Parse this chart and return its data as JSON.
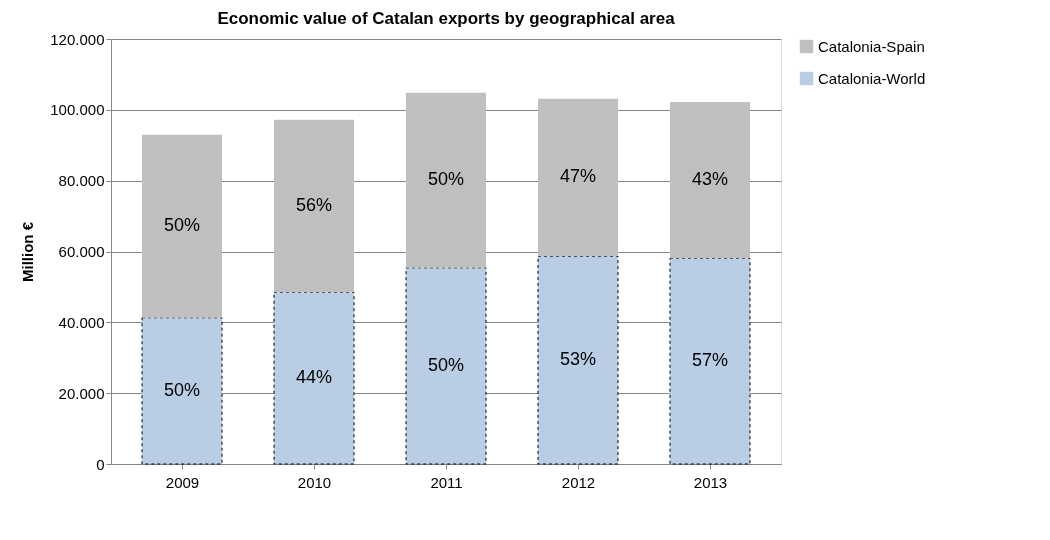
{
  "chart_data": {
    "type": "bar",
    "title": "Economic value of Catalan exports by geographical area",
    "ylabel": "Million €",
    "categories": [
      "2009",
      "2010",
      "2011",
      "2012",
      "2013"
    ],
    "stacked": true,
    "series": [
      {
        "name": "Catalonia-World",
        "color": "#b9cde5",
        "line_style": "dashed",
        "values": [
          41300,
          48500,
          55400,
          58700,
          58100
        ]
      },
      {
        "name": "Catalonia-Spain",
        "color": "#bfbfbf",
        "values": [
          51700,
          48700,
          49400,
          44400,
          44100
        ]
      }
    ],
    "annotations": [
      "50%",
      "44%",
      "50%",
      "53%",
      "57%",
      "50%",
      "56%",
      "50%",
      "47%",
      "43%"
    ],
    "ylim": [
      0,
      120000
    ],
    "yticks": [
      0,
      {
        "value": 20000,
        "label": "20.000"
      },
      {
        "value": 40000,
        "label": "40.000"
      },
      {
        "value": 60000,
        "label": "60.000"
      },
      {
        "value": 80000,
        "label": "80.000"
      },
      {
        "value": 100000,
        "label": "100.000"
      },
      {
        "value": 120000,
        "label": "120.000"
      }
    ],
    "grid": "y",
    "legend": "right"
  }
}
